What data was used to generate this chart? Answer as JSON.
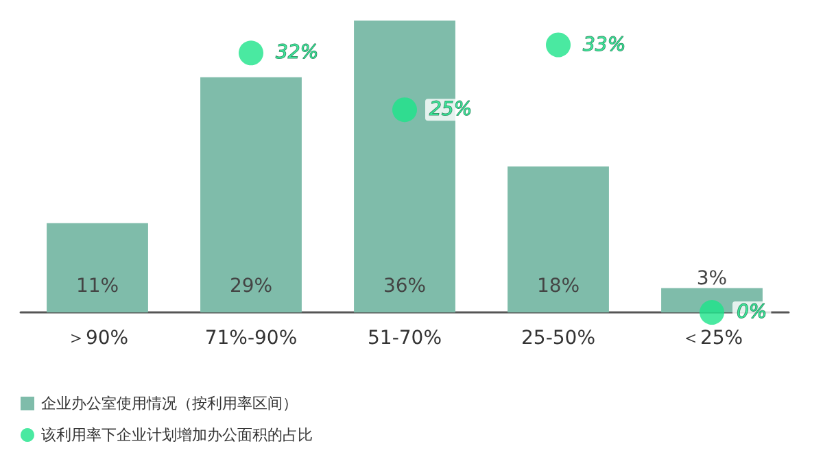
{
  "chart_data": {
    "type": "bar",
    "categories": [
      "＞90%",
      "71%-90%",
      "51-70%",
      "25-50%",
      "＜25%"
    ],
    "series": [
      {
        "name": "企业办公室使用情况（按利用率区间）",
        "type": "bar",
        "color": "#7fbcaa",
        "values": [
          11,
          29,
          36,
          18,
          3
        ],
        "value_labels": [
          "11%",
          "29%",
          "36%",
          "18%",
          "3%"
        ]
      },
      {
        "name": "该利用率下企业计划增加办公面积的占比",
        "type": "scatter",
        "color": "#1de38a",
        "values": [
          null,
          32,
          25,
          33,
          0
        ],
        "value_labels": [
          null,
          "32%",
          "25%",
          "33%",
          "0%"
        ]
      }
    ],
    "legend": "bottom left",
    "grid": false,
    "marker": "circle"
  }
}
